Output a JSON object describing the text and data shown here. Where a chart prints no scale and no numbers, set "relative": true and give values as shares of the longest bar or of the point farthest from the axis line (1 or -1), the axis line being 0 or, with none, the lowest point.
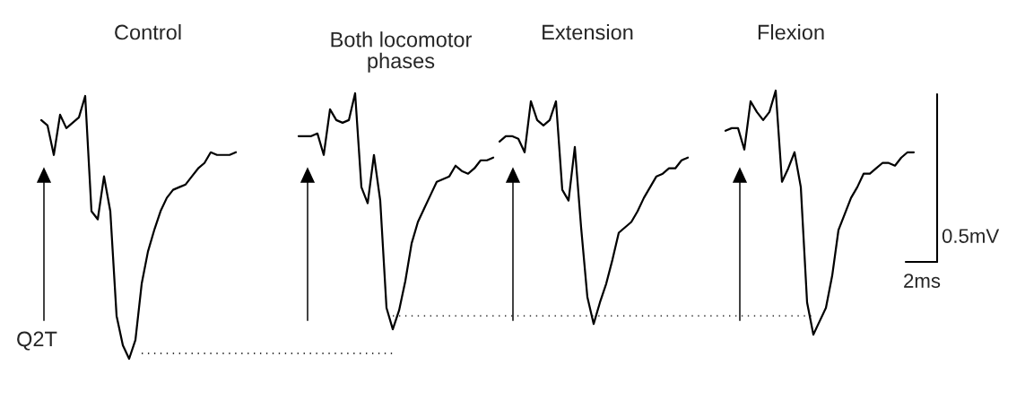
{
  "chart_data": {
    "type": "line",
    "relative": true,
    "categories": [
      null,
      null,
      null,
      null,
      null,
      null,
      null,
      null,
      null,
      null,
      null,
      null,
      null,
      null,
      null,
      null,
      null,
      null,
      null,
      null,
      null,
      null,
      null,
      null,
      null,
      null,
      null,
      null,
      null,
      null,
      null,
      null,
      null,
      null,
      null,
      null,
      null,
      null,
      null,
      null,
      null,
      null,
      null,
      null,
      null,
      null,
      null,
      null,
      null,
      null,
      null,
      null,
      null,
      null,
      null,
      null,
      null,
      null,
      null,
      null,
      null,
      null,
      null,
      null,
      null,
      null,
      null,
      null,
      null,
      null,
      null,
      null,
      null,
      null,
      null,
      null,
      null,
      null,
      null,
      null,
      null,
      null,
      null,
      null,
      null,
      null,
      null,
      null,
      null,
      null,
      null,
      null,
      null,
      null,
      null,
      null,
      null,
      null,
      null,
      null,
      null,
      null,
      null,
      null,
      null,
      null,
      null,
      null,
      null,
      null,
      null,
      null,
      null,
      null,
      null,
      null,
      null,
      null,
      null,
      null,
      null,
      null,
      null,
      null,
      null,
      null,
      null,
      null,
      null,
      null,
      null,
      null,
      null,
      null,
      null,
      null,
      null,
      null,
      null,
      null
    ],
    "series": [
      {
        "color": "#000000",
        "line_style": "solid",
        "values": [
          0.89,
          0.87,
          0.76,
          0.91,
          0.86,
          0.88,
          0.9,
          0.98,
          0.55,
          0.52,
          0.68,
          0.55,
          0.16,
          0.05,
          0,
          0.07,
          0.28,
          0.4,
          0.48,
          0.55,
          0.6,
          0.63,
          0.64,
          0.65,
          0.68,
          0.71,
          0.73,
          0.77,
          0.76,
          0.76,
          0.76,
          0.77,
          null,
          null,
          null,
          null,
          null,
          null,
          null,
          null,
          null,
          null,
          null,
          null,
          null,
          null,
          null,
          null,
          null,
          null,
          null,
          null,
          null,
          null,
          null,
          null,
          null,
          null,
          null,
          null,
          null,
          null,
          null,
          null,
          null,
          null,
          null,
          null,
          null,
          null,
          null,
          null,
          null,
          null,
          null,
          null,
          null,
          null,
          null,
          null,
          null,
          null,
          null,
          null,
          null,
          null,
          null,
          null,
          null,
          null,
          null,
          null,
          null,
          null,
          null,
          null,
          null,
          null,
          null,
          null,
          null,
          null,
          null,
          null,
          null,
          null,
          null,
          null,
          null,
          null,
          null,
          null,
          null,
          null,
          null,
          null,
          null,
          null,
          null,
          null,
          null,
          null,
          null,
          null,
          null,
          null,
          null,
          null,
          null,
          null,
          null,
          null,
          null,
          null,
          null,
          null,
          null,
          null,
          null,
          null
        ]
      },
      {
        "color": "#000000",
        "line_style": "solid",
        "values": [
          null,
          null,
          null,
          null,
          null,
          null,
          null,
          null,
          null,
          null,
          null,
          null,
          null,
          null,
          null,
          null,
          null,
          null,
          null,
          null,
          null,
          null,
          null,
          null,
          null,
          null,
          null,
          null,
          null,
          null,
          null,
          null,
          null,
          null,
          null,
          null,
          null,
          null,
          null,
          null,
          null,
          0.83,
          0.83,
          0.83,
          0.84,
          0.76,
          0.93,
          0.89,
          0.88,
          0.89,
          0.99,
          0.64,
          0.58,
          0.76,
          0.59,
          0.19,
          0.11,
          0.18,
          0.29,
          0.43,
          0.51,
          0.56,
          0.61,
          0.66,
          0.67,
          0.68,
          0.72,
          0.7,
          0.69,
          0.71,
          0.74,
          0.74,
          0.75,
          null,
          null,
          null,
          null,
          null,
          null,
          null,
          null,
          null,
          null,
          null,
          null,
          null,
          null,
          null,
          null,
          null,
          null,
          null,
          null,
          null,
          null,
          null,
          null,
          null,
          null,
          null,
          null,
          null,
          null,
          null,
          null,
          null,
          null,
          null,
          null,
          null,
          null,
          null,
          null,
          null,
          null,
          null,
          null,
          null,
          null,
          null,
          null,
          null,
          null,
          null,
          null,
          null,
          null,
          null,
          null,
          null,
          null,
          null,
          null,
          null,
          null,
          null,
          null,
          null,
          null,
          null
        ]
      },
      {
        "color": "#000000",
        "line_style": "solid",
        "values": [
          null,
          null,
          null,
          null,
          null,
          null,
          null,
          null,
          null,
          null,
          null,
          null,
          null,
          null,
          null,
          null,
          null,
          null,
          null,
          null,
          null,
          null,
          null,
          null,
          null,
          null,
          null,
          null,
          null,
          null,
          null,
          null,
          null,
          null,
          null,
          null,
          null,
          null,
          null,
          null,
          null,
          null,
          null,
          null,
          null,
          null,
          null,
          null,
          null,
          null,
          null,
          null,
          null,
          null,
          null,
          null,
          null,
          null,
          null,
          null,
          null,
          null,
          null,
          null,
          null,
          null,
          null,
          null,
          null,
          null,
          null,
          null,
          null,
          0.81,
          0.83,
          0.83,
          0.82,
          0.77,
          0.96,
          0.89,
          0.87,
          0.89,
          0.96,
          0.63,
          0.59,
          0.79,
          0.49,
          0.23,
          0.13,
          0.21,
          0.28,
          0.37,
          0.47,
          0.49,
          0.51,
          0.55,
          0.6,
          0.64,
          0.68,
          0.69,
          0.71,
          0.71,
          0.74,
          0.75,
          null,
          null,
          null,
          null,
          null,
          null,
          null,
          null,
          null,
          null,
          null,
          null,
          null,
          null,
          null,
          null,
          null,
          null,
          null,
          null,
          null,
          null,
          null,
          null,
          null,
          null,
          null,
          null,
          null,
          null,
          null,
          null,
          null,
          null,
          null,
          null
        ]
      },
      {
        "color": "#000000",
        "line_style": "solid",
        "values": [
          null,
          null,
          null,
          null,
          null,
          null,
          null,
          null,
          null,
          null,
          null,
          null,
          null,
          null,
          null,
          null,
          null,
          null,
          null,
          null,
          null,
          null,
          null,
          null,
          null,
          null,
          null,
          null,
          null,
          null,
          null,
          null,
          null,
          null,
          null,
          null,
          null,
          null,
          null,
          null,
          null,
          null,
          null,
          null,
          null,
          null,
          null,
          null,
          null,
          null,
          null,
          null,
          null,
          null,
          null,
          null,
          null,
          null,
          null,
          null,
          null,
          null,
          null,
          null,
          null,
          null,
          null,
          null,
          null,
          null,
          null,
          null,
          null,
          null,
          null,
          null,
          null,
          null,
          null,
          null,
          null,
          null,
          null,
          null,
          null,
          null,
          null,
          null,
          null,
          null,
          null,
          null,
          null,
          null,
          null,
          null,
          null,
          null,
          null,
          null,
          null,
          null,
          null,
          null,
          null,
          null,
          null,
          null,
          null,
          0.85,
          0.86,
          0.86,
          0.78,
          0.96,
          0.92,
          0.89,
          0.92,
          1.0,
          0.66,
          0.71,
          0.77,
          0.64,
          0.21,
          0.09,
          0.14,
          0.19,
          0.31,
          0.48,
          0.54,
          0.6,
          0.64,
          0.69,
          0.69,
          0.71,
          0.73,
          0.73,
          0.72,
          0.75,
          0.77,
          0.77
        ]
      },
      {
        "color": "#000000",
        "line_style": "dotted",
        "values": [
          null,
          null,
          null,
          null,
          null,
          null,
          null,
          null,
          null,
          null,
          null,
          null,
          null,
          null,
          null,
          null,
          0.02,
          0.02,
          0.02,
          0.02,
          0.02,
          0.02,
          0.02,
          0.02,
          0.02,
          0.02,
          0.02,
          0.02,
          0.02,
          0.02,
          0.02,
          0.02,
          0.02,
          0.02,
          0.02,
          0.02,
          0.02,
          0.02,
          0.02,
          0.02,
          0.02,
          0.02,
          0.02,
          0.02,
          0.02,
          0.02,
          0.02,
          0.02,
          0.02,
          0.02,
          0.02,
          0.02,
          0.02,
          0.02,
          0.02,
          0.02,
          0.02,
          null,
          null,
          null,
          null,
          null,
          null,
          null,
          null,
          null,
          null,
          null,
          null,
          null,
          null,
          null,
          null,
          null,
          null,
          null,
          null,
          null,
          null,
          null,
          null,
          null,
          null,
          null,
          null,
          null,
          null,
          null,
          null,
          null,
          null,
          null,
          null,
          null,
          null,
          null,
          null,
          null,
          null,
          null,
          null,
          null,
          null,
          null,
          null,
          null,
          null,
          null,
          null,
          null,
          null,
          null,
          null,
          null,
          null,
          null,
          null,
          null,
          null,
          null,
          null,
          null,
          null,
          null,
          null,
          null,
          null,
          null,
          null,
          null,
          null,
          null,
          null,
          null,
          null,
          null,
          null,
          null,
          null,
          null
        ]
      },
      {
        "color": "#000000",
        "line_style": "dotted",
        "values": [
          null,
          null,
          null,
          null,
          null,
          null,
          null,
          null,
          null,
          null,
          null,
          null,
          null,
          null,
          null,
          null,
          null,
          null,
          null,
          null,
          null,
          null,
          null,
          null,
          null,
          null,
          null,
          null,
          null,
          null,
          null,
          null,
          null,
          null,
          null,
          null,
          null,
          null,
          null,
          null,
          null,
          null,
          null,
          null,
          null,
          null,
          null,
          null,
          null,
          null,
          null,
          null,
          null,
          null,
          null,
          null,
          0.16,
          0.16,
          0.16,
          0.16,
          0.16,
          0.16,
          0.16,
          0.16,
          0.16,
          0.16,
          0.16,
          0.16,
          0.16,
          0.16,
          0.16,
          0.16,
          0.16,
          0.16,
          0.16,
          0.16,
          0.16,
          0.16,
          0.16,
          0.16,
          0.16,
          0.16,
          0.16,
          0.16,
          0.16,
          0.16,
          0.16,
          0.16,
          0.16,
          0.16,
          0.16,
          0.16,
          0.16,
          0.16,
          0.16,
          0.16,
          0.16,
          0.16,
          0.16,
          0.16,
          0.16,
          0.16,
          0.16,
          0.16,
          0.16,
          0.16,
          0.16,
          0.16,
          0.16,
          0.16,
          0.16,
          0.16,
          0.16,
          0.16,
          0.16,
          0.16,
          0.16,
          0.16,
          0.16,
          0.16,
          0.16,
          0.16,
          0.16,
          0.16,
          null,
          null,
          null,
          null,
          null,
          null,
          null,
          null,
          null,
          null,
          null,
          null,
          null,
          null,
          null,
          null
        ]
      }
    ],
    "annotations": [
      "Control",
      "Both locomotor\nphases",
      "Extension",
      "Flexion",
      "Q2T",
      "0.5mV",
      "2ms"
    ]
  }
}
